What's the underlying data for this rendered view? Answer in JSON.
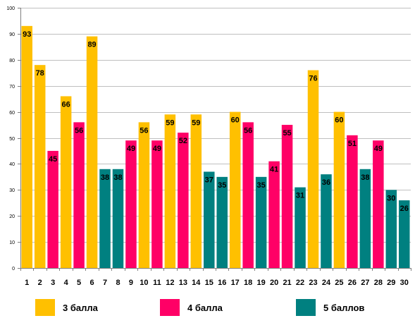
{
  "chart_data": {
    "type": "bar",
    "categories": [
      "1",
      "2",
      "3",
      "4",
      "5",
      "6",
      "7",
      "8",
      "9",
      "10",
      "11",
      "12",
      "13",
      "14",
      "15",
      "16",
      "17",
      "18",
      "19",
      "20",
      "21",
      "22",
      "23",
      "24",
      "25",
      "26",
      "27",
      "28",
      "29",
      "30"
    ],
    "values": [
      93,
      78,
      45,
      66,
      56,
      89,
      38,
      38,
      49,
      56,
      49,
      59,
      52,
      59,
      37,
      35,
      60,
      56,
      35,
      41,
      55,
      31,
      76,
      36,
      60,
      51,
      38,
      49,
      30,
      26
    ],
    "group_index": [
      0,
      0,
      1,
      0,
      1,
      0,
      2,
      2,
      1,
      0,
      1,
      0,
      1,
      0,
      2,
      2,
      0,
      1,
      2,
      1,
      1,
      2,
      0,
      2,
      0,
      1,
      2,
      1,
      2,
      2
    ],
    "groups": [
      {
        "name": "3 балла",
        "color": "#FFC000"
      },
      {
        "name": "4 балла",
        "color": "#FF0066"
      },
      {
        "name": "5 баллов",
        "color": "#008080"
      }
    ],
    "ylim": [
      0,
      100
    ],
    "yticks": [
      "0",
      "10",
      "20",
      "30",
      "40",
      "50",
      "60",
      "70",
      "80",
      "90",
      "100"
    ],
    "grid": true,
    "legend_position": "bottom",
    "title": "",
    "xlabel": "",
    "ylabel": ""
  }
}
